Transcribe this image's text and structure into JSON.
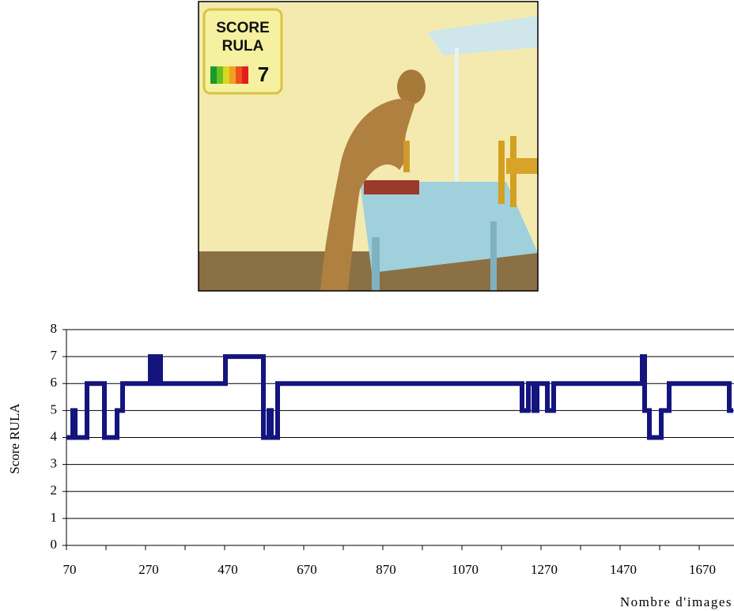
{
  "image": {
    "badge_lines": [
      "SCORE",
      "RULA"
    ],
    "badge_score": 7
  },
  "chart_data": {
    "type": "line",
    "y_label": "Score RULA",
    "x_label": "Nombre d'images",
    "color": "#14147f",
    "grid": true,
    "xlim": [
      70,
      1756
    ],
    "ylim": [
      0,
      8
    ],
    "xticks": [
      70,
      270,
      470,
      670,
      870,
      1070,
      1270,
      1470,
      1670
    ],
    "xminor_ticks": [
      170,
      370,
      570,
      770,
      970,
      1170,
      1370,
      1570
    ],
    "yticks": [
      0,
      1,
      2,
      3,
      4,
      5,
      6,
      7,
      8
    ],
    "series": [
      {
        "x": [
          70,
          86,
          86,
          92,
          92,
          122,
          122,
          166,
          166,
          198,
          198,
          212,
          212,
          282,
          282,
          288,
          288,
          296,
          296,
          308,
          308,
          472,
          472,
          568,
          568,
          582,
          582,
          588,
          588,
          604,
          604,
          1222,
          1222,
          1238,
          1238,
          1252,
          1252,
          1260,
          1260,
          1286,
          1286,
          1302,
          1302,
          1526,
          1526,
          1532,
          1532,
          1544,
          1544,
          1574,
          1574,
          1594,
          1594,
          1746,
          1746,
          1756
        ],
        "values": [
          4,
          4,
          5,
          5,
          4,
          4,
          6,
          6,
          4,
          4,
          5,
          5,
          6,
          6,
          7,
          7,
          6,
          6,
          7,
          7,
          6,
          6,
          7,
          7,
          4,
          4,
          5,
          5,
          4,
          4,
          6,
          6,
          5,
          5,
          6,
          6,
          5,
          5,
          6,
          6,
          5,
          5,
          6,
          6,
          7,
          7,
          5,
          5,
          4,
          4,
          5,
          5,
          6,
          6,
          5,
          5
        ]
      }
    ]
  }
}
